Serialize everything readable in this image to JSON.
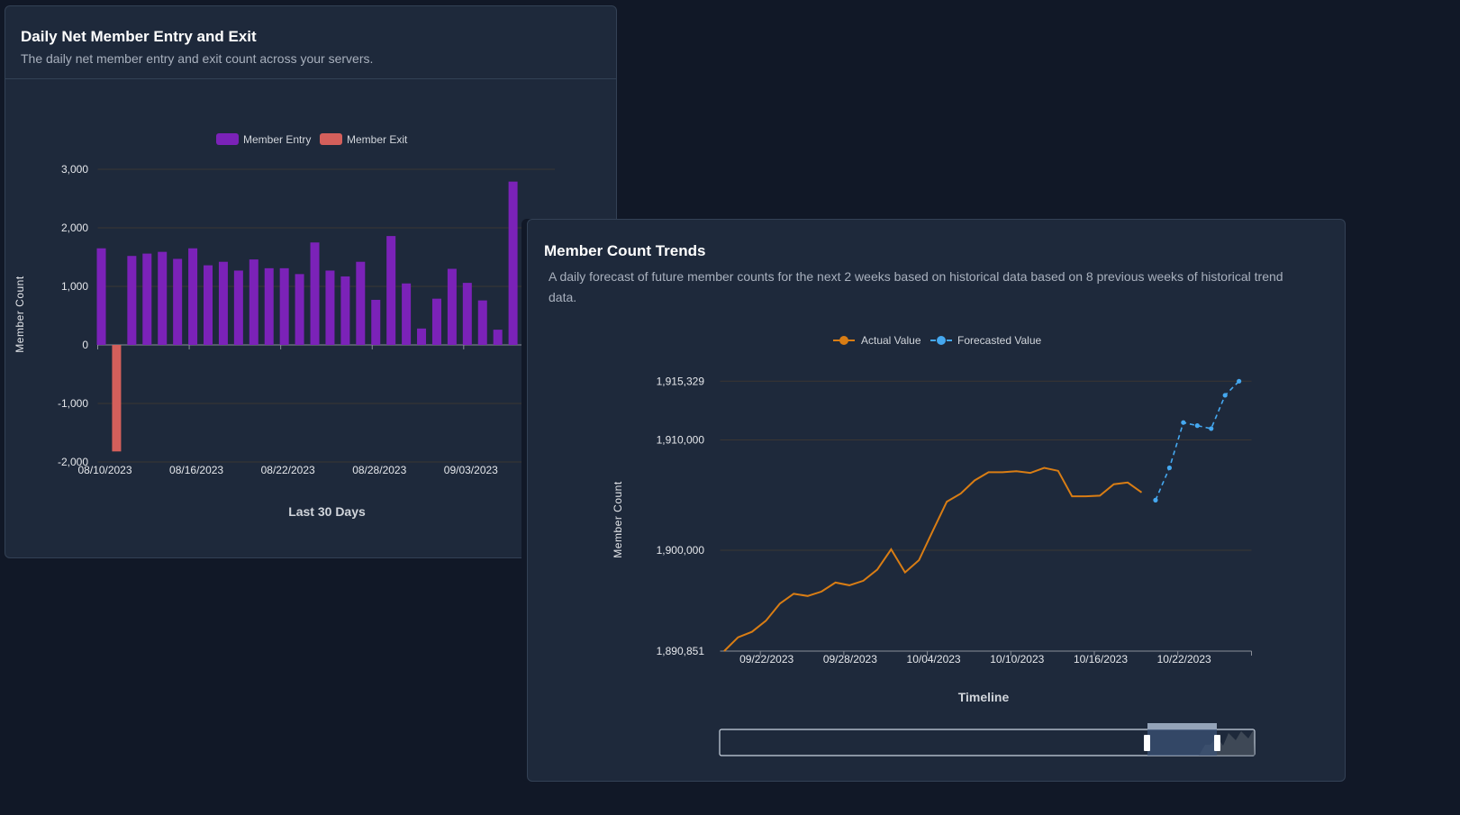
{
  "panels": {
    "entry_exit": {
      "title": "Daily Net Member Entry and Exit",
      "subtitle": "The daily net member entry and exit count across your servers."
    },
    "trends": {
      "title": "Member Count Trends",
      "subtitle": "A daily forecast of future member counts for the next 2 weeks based on historical data based on 8 previous weeks of historical trend data."
    }
  },
  "colors": {
    "background": "#111827",
    "panel": "#1e293b",
    "entry": "#7b22b8",
    "exit": "#d45f5b",
    "actual": "#d97d14",
    "forecast": "#45a8f0"
  },
  "chart_data": [
    {
      "type": "bar",
      "title": "",
      "xlabel": "Last 30 Days",
      "ylabel": "Member Count",
      "ylim": [
        -2000,
        3000
      ],
      "yticks": [
        "3,000",
        "2,000",
        "1,000",
        "0",
        "-1,000",
        "-2,000"
      ],
      "ytick_values": [
        3000,
        2000,
        1000,
        0,
        -1000,
        -2000
      ],
      "xticks": [
        "08/10/2023",
        "08/16/2023",
        "08/22/2023",
        "08/28/2023",
        "09/03/2023"
      ],
      "grid": true,
      "legend": "top-center",
      "categories": [
        "08/10",
        "08/11",
        "08/12",
        "08/13",
        "08/14",
        "08/15",
        "08/16",
        "08/17",
        "08/18",
        "08/19",
        "08/20",
        "08/21",
        "08/22",
        "08/23",
        "08/24",
        "08/25",
        "08/26",
        "08/27",
        "08/28",
        "08/29",
        "08/30",
        "08/31",
        "09/01",
        "09/02",
        "09/03",
        "09/04",
        "09/05",
        "09/06"
      ],
      "series": [
        {
          "name": "Member Entry",
          "values": [
            1650,
            0,
            1520,
            1560,
            1590,
            1470,
            1650,
            1360,
            1420,
            1270,
            1460,
            1310,
            1310,
            1210,
            1750,
            1270,
            1170,
            1420,
            770,
            1860,
            1050,
            280,
            790,
            1300,
            1060,
            760,
            260,
            2790
          ]
        },
        {
          "name": "Member Exit",
          "values": [
            0,
            -1820,
            0,
            0,
            0,
            0,
            0,
            0,
            0,
            0,
            0,
            0,
            0,
            0,
            0,
            0,
            0,
            0,
            0,
            0,
            0,
            0,
            0,
            0,
            0,
            0,
            0,
            0
          ]
        }
      ]
    },
    {
      "type": "line",
      "title": "",
      "xlabel": "Timeline",
      "ylabel": "Member Count",
      "ylim": [
        1890851,
        1915329
      ],
      "yticks": [
        "1,915,329",
        "1,910,000",
        "1,900,000",
        "1,890,851"
      ],
      "ytick_values": [
        1915329,
        1910000,
        1900000,
        1890851
      ],
      "xticks": [
        "09/22/2023",
        "09/28/2023",
        "10/04/2023",
        "10/10/2023",
        "10/16/2023",
        "10/22/2023"
      ],
      "grid": true,
      "legend": "top-center",
      "series": [
        {
          "name": "Actual Value",
          "x": [
            "09/20",
            "09/21",
            "09/22",
            "09/23",
            "09/24",
            "09/25",
            "09/26",
            "09/27",
            "09/28",
            "09/29",
            "09/30",
            "10/01",
            "10/02",
            "10/03",
            "10/04",
            "10/05",
            "10/06",
            "10/07",
            "10/08",
            "10/09",
            "10/10",
            "10/11",
            "10/12",
            "10/13",
            "10/14",
            "10/15",
            "10/16",
            "10/17",
            "10/18",
            "10/19",
            "10/20"
          ],
          "values": [
            1890851,
            1892100,
            1892600,
            1893600,
            1895150,
            1896050,
            1895850,
            1896250,
            1897070,
            1896820,
            1897230,
            1898240,
            1900080,
            1897990,
            1899100,
            1901770,
            1904400,
            1905140,
            1906330,
            1907070,
            1907070,
            1907170,
            1907010,
            1907470,
            1907200,
            1904890,
            1904890,
            1904950,
            1905980,
            1906140,
            1905240
          ]
        },
        {
          "name": "Forecasted Value",
          "x": [
            "10/21",
            "10/22",
            "10/23",
            "10/24",
            "10/25",
            "10/26",
            "10/27"
          ],
          "values": [
            1904540,
            1907470,
            1911580,
            1911300,
            1911030,
            1914050,
            1915329
          ]
        }
      ]
    }
  ]
}
